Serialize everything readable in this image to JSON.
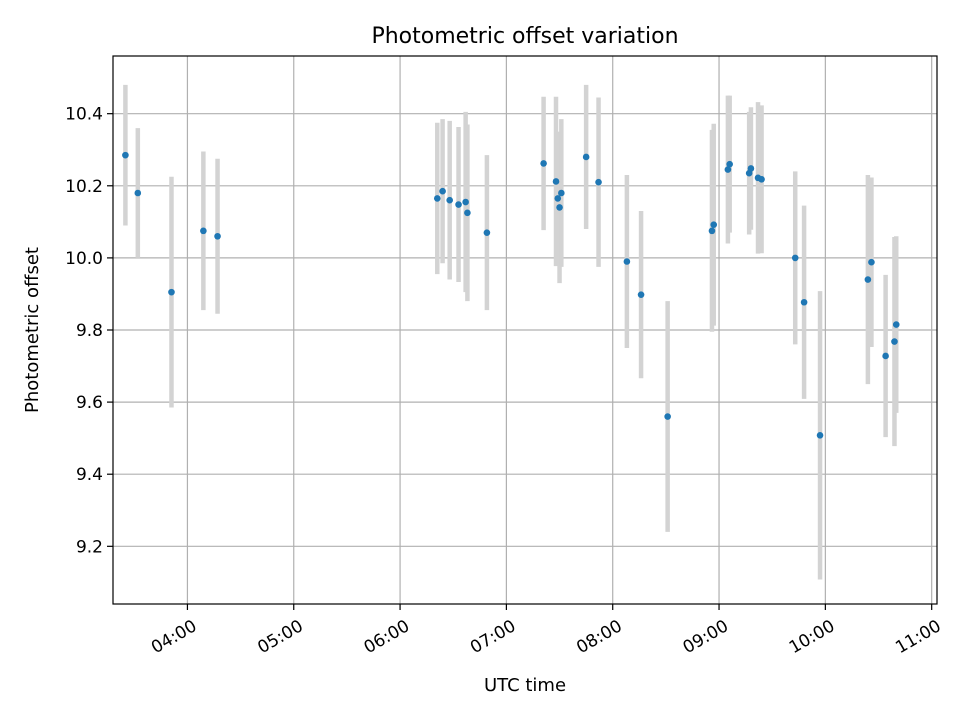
{
  "chart_data": {
    "type": "scatter",
    "title": "Photometric offset variation",
    "xlabel": "UTC time",
    "ylabel": "Photometric offset",
    "grid": true,
    "xlim": [
      "03:18",
      "11:03"
    ],
    "ylim": [
      9.04,
      10.56
    ],
    "x_ticks": [
      "04:00",
      "05:00",
      "06:00",
      "07:00",
      "08:00",
      "09:00",
      "10:00",
      "11:00"
    ],
    "y_ticks": [
      9.2,
      9.4,
      9.6,
      9.8,
      10.0,
      10.2,
      10.4
    ],
    "colors": {
      "point": "#1f77b4",
      "errorbar": "#d3d3d3",
      "grid": "#b0b0b0"
    },
    "points": [
      {
        "t": "03:25",
        "y": 10.285,
        "err": 0.195
      },
      {
        "t": "03:32",
        "y": 10.18,
        "err": 0.18
      },
      {
        "t": "03:51",
        "y": 9.905,
        "err": 0.32
      },
      {
        "t": "04:09",
        "y": 10.075,
        "err": 0.22
      },
      {
        "t": "04:17",
        "y": 10.06,
        "err": 0.215
      },
      {
        "t": "06:21",
        "y": 10.165,
        "err": 0.21
      },
      {
        "t": "06:24",
        "y": 10.185,
        "err": 0.2
      },
      {
        "t": "06:28",
        "y": 10.16,
        "err": 0.22
      },
      {
        "t": "06:33",
        "y": 10.148,
        "err": 0.215
      },
      {
        "t": "06:37",
        "y": 10.155,
        "err": 0.25
      },
      {
        "t": "06:38",
        "y": 10.125,
        "err": 0.245
      },
      {
        "t": "06:49",
        "y": 10.07,
        "err": 0.215
      },
      {
        "t": "07:21",
        "y": 10.262,
        "err": 0.185
      },
      {
        "t": "07:28",
        "y": 10.212,
        "err": 0.235
      },
      {
        "t": "07:29",
        "y": 10.165,
        "err": 0.185
      },
      {
        "t": "07:30",
        "y": 10.14,
        "err": 0.21
      },
      {
        "t": "07:31",
        "y": 10.18,
        "err": 0.205
      },
      {
        "t": "07:45",
        "y": 10.28,
        "err": 0.2
      },
      {
        "t": "07:52",
        "y": 10.21,
        "err": 0.235
      },
      {
        "t": "08:08",
        "y": 9.99,
        "err": 0.24
      },
      {
        "t": "08:16",
        "y": 9.898,
        "err": 0.232
      },
      {
        "t": "08:31",
        "y": 9.56,
        "err": 0.32
      },
      {
        "t": "08:56",
        "y": 10.075,
        "err": 0.28
      },
      {
        "t": "08:57",
        "y": 10.092,
        "err": 0.28
      },
      {
        "t": "09:05",
        "y": 10.245,
        "err": 0.205
      },
      {
        "t": "09:06",
        "y": 10.26,
        "err": 0.19
      },
      {
        "t": "09:17",
        "y": 10.235,
        "err": 0.17
      },
      {
        "t": "09:18",
        "y": 10.248,
        "err": 0.17
      },
      {
        "t": "09:22",
        "y": 10.222,
        "err": 0.21
      },
      {
        "t": "09:24",
        "y": 10.218,
        "err": 0.205
      },
      {
        "t": "09:43",
        "y": 10.0,
        "err": 0.24
      },
      {
        "t": "09:48",
        "y": 9.877,
        "err": 0.268
      },
      {
        "t": "09:57",
        "y": 9.508,
        "err": 0.4
      },
      {
        "t": "10:24",
        "y": 9.94,
        "err": 0.29
      },
      {
        "t": "10:26",
        "y": 9.988,
        "err": 0.235
      },
      {
        "t": "10:34",
        "y": 9.728,
        "err": 0.225
      },
      {
        "t": "10:39",
        "y": 9.768,
        "err": 0.29
      },
      {
        "t": "10:40",
        "y": 9.815,
        "err": 0.245
      }
    ]
  }
}
